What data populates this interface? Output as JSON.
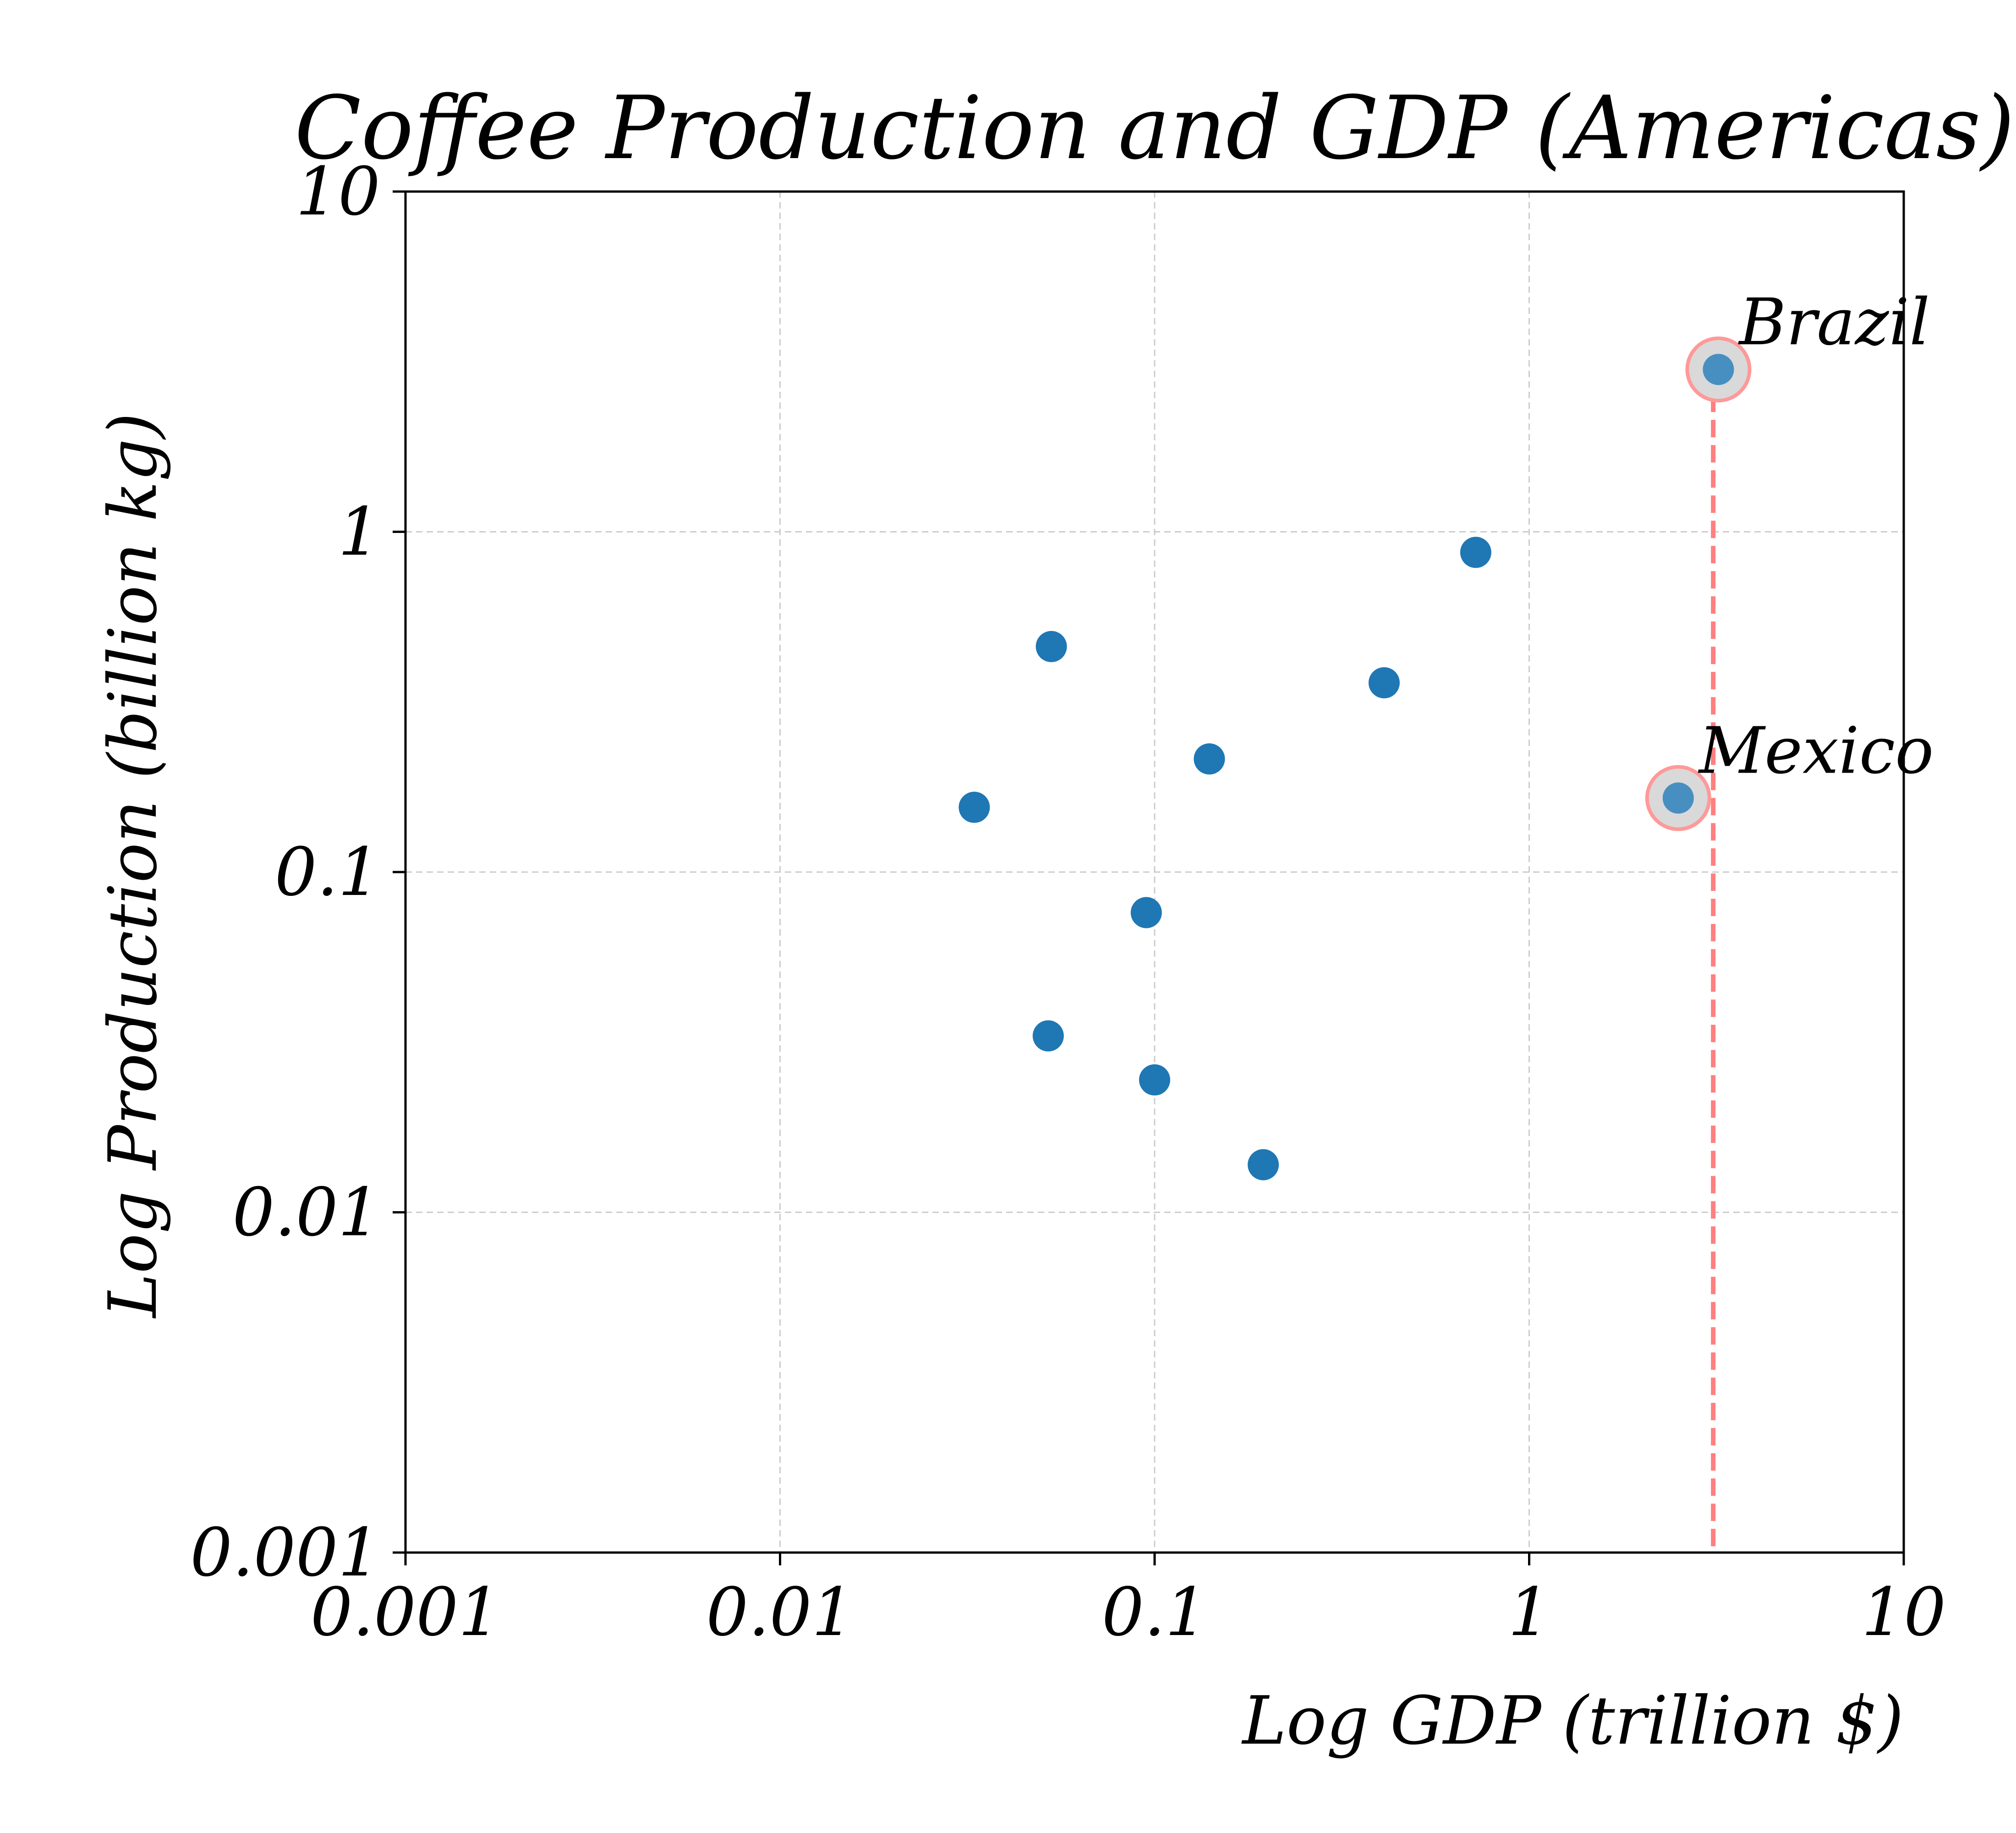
{
  "chart_data": {
    "type": "scatter",
    "title": "Coffee Production and GDP (Americas)",
    "xlabel": "Log GDP (trillion $)",
    "ylabel": "Log Production (billion kg)",
    "xscale": "log",
    "yscale": "log",
    "xlim": [
      0.001,
      10
    ],
    "ylim": [
      0.001,
      10
    ],
    "x_tick_labels": [
      "0.001",
      "0.01",
      "0.1",
      "1",
      "10"
    ],
    "y_tick_labels": [
      "0.001",
      "0.01",
      "0.1",
      "1",
      "10"
    ],
    "grid": true,
    "series": [
      {
        "color": "#1f77b4",
        "points": [
          {
            "x": 3.2,
            "y": 3.0
          },
          {
            "x": 2.5,
            "y": 0.165
          },
          {
            "x": 0.72,
            "y": 0.87
          },
          {
            "x": 0.41,
            "y": 0.36
          },
          {
            "x": 0.053,
            "y": 0.46
          },
          {
            "x": 0.14,
            "y": 0.215
          },
          {
            "x": 0.033,
            "y": 0.155
          },
          {
            "x": 0.095,
            "y": 0.076
          },
          {
            "x": 0.052,
            "y": 0.033
          },
          {
            "x": 0.1,
            "y": 0.0245
          },
          {
            "x": 0.195,
            "y": 0.0138
          }
        ]
      }
    ],
    "annotations": [
      {
        "text": "Brazil",
        "x": 3.2,
        "y": 3.0
      },
      {
        "text": "Mexico",
        "x": 2.5,
        "y": 0.165
      }
    ],
    "reference_line": {
      "x": 3.1,
      "color": "#ff7f7f",
      "style": "dashed"
    },
    "highlight_color": "#ff9999"
  }
}
